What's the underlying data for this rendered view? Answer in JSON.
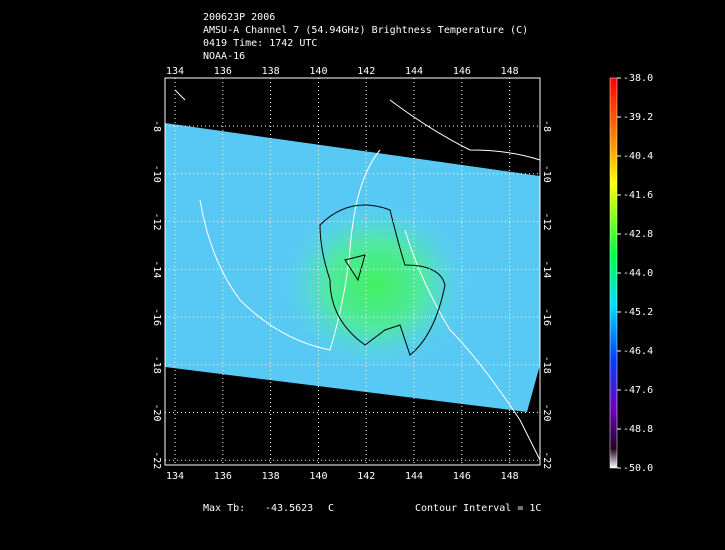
{
  "header": {
    "lines": [
      "200623P 2006",
      "AMSU-A Channel 7 (54.94GHz) Brightness Temperature (C)",
      "0419 Time: 1742 UTC",
      "NOAA-16"
    ]
  },
  "map": {
    "lon_ticks": [
      134,
      136,
      138,
      140,
      142,
      144,
      146,
      148
    ],
    "lat_ticks": [
      -8,
      -10,
      -12,
      -14,
      -16,
      -18,
      -20,
      -22
    ],
    "lon_range": [
      133.58,
      149.27
    ],
    "lat_range": [
      -5.99,
      -22.2
    ]
  },
  "colorbar": {
    "range": [
      -50,
      -38
    ],
    "ticks": [
      {
        "value": -38,
        "label": "-38.0"
      },
      {
        "value": -39.2,
        "label": "-39.2"
      },
      {
        "value": -40.4,
        "label": "-40.4"
      },
      {
        "value": -41.6,
        "label": "-41.6"
      },
      {
        "value": -42.8,
        "label": "-42.8"
      },
      {
        "value": -44,
        "label": "-44.0"
      },
      {
        "value": -45.2,
        "label": "-45.2"
      },
      {
        "value": -46.4,
        "label": "-46.4"
      },
      {
        "value": -47.6,
        "label": "-47.6"
      },
      {
        "value": -48.8,
        "label": "-48.8"
      },
      {
        "value": -50,
        "label": "-50.0"
      }
    ]
  },
  "footer": {
    "max_label": "Max Tb:",
    "max_value": -43.5623,
    "max_unit": "C",
    "contour": "Contour Interval = 1C"
  }
}
